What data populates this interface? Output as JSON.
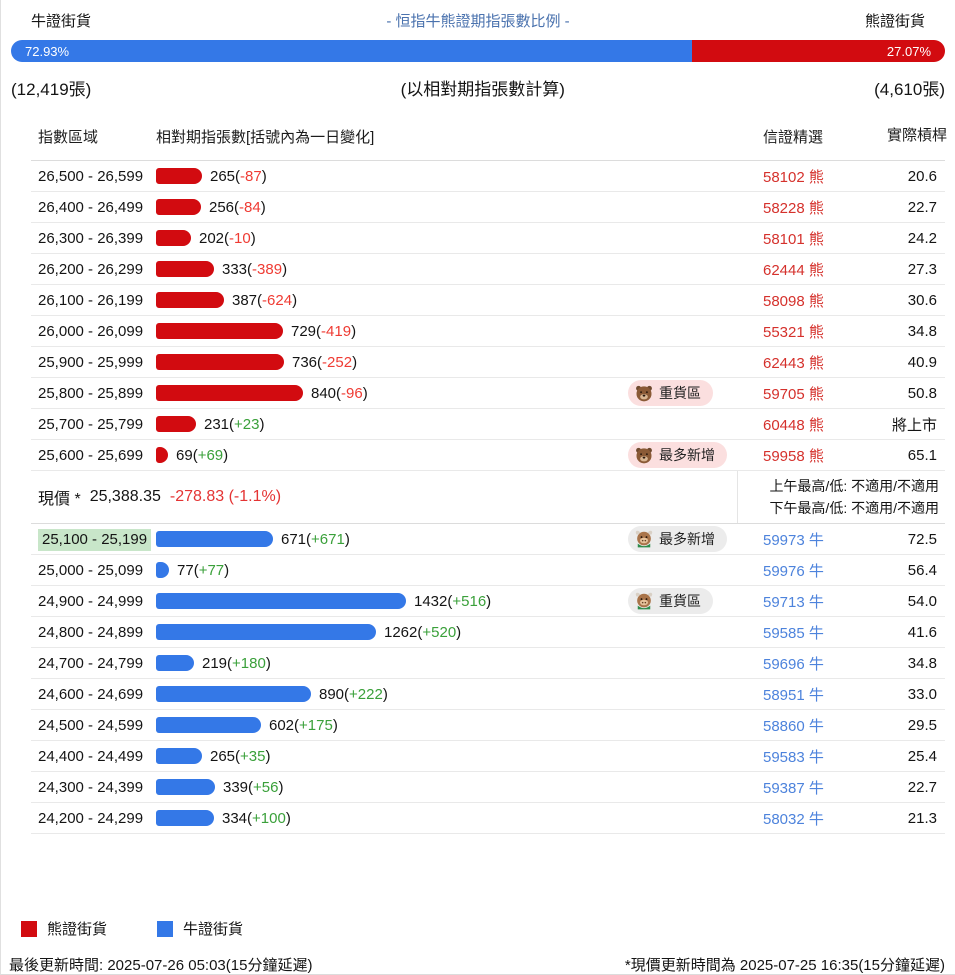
{
  "colors": {
    "bull": "#3478e7",
    "bear": "#d20b10",
    "pos_change": "#3aa03a",
    "neg_change": "#ef3b33",
    "bear_code": "#d5312c",
    "bull_code": "#4d83dc",
    "title": "#4a72ae",
    "highlight": "#c8e6c9",
    "badge_bear_bg": "#fbdfdf",
    "badge_bull_bg": "#ececec",
    "price_change": "#e43333"
  },
  "header": {
    "left_label": "牛證街貨",
    "title": "- 恒指牛熊證期指張數比例 -",
    "right_label": "熊證街貨",
    "bull_pct": "72.93%",
    "bear_pct": "27.07%",
    "bull_pct_value": 72.93,
    "bear_pct_value": 27.07,
    "bull_count": "(12,419張)",
    "basis_note": "(以相對期指張數計算)",
    "bear_count": "(4,610張)"
  },
  "table": {
    "headers": {
      "range": "指數區域",
      "contracts": "相對期指張數[括號內為一日變化]",
      "selection": "信證精選",
      "leverage": "實際槓桿"
    },
    "bear_rows": [
      {
        "range": "26,500 - 26,599",
        "value": 265,
        "change": "-87",
        "badge": null,
        "code": "58102",
        "code_suffix": "熊",
        "leverage": "20.6",
        "highlight": false
      },
      {
        "range": "26,400 - 26,499",
        "value": 256,
        "change": "-84",
        "badge": null,
        "code": "58228",
        "code_suffix": "熊",
        "leverage": "22.7",
        "highlight": false
      },
      {
        "range": "26,300 - 26,399",
        "value": 202,
        "change": "-10",
        "badge": null,
        "code": "58101",
        "code_suffix": "熊",
        "leverage": "24.2",
        "highlight": false
      },
      {
        "range": "26,200 - 26,299",
        "value": 333,
        "change": "-389",
        "badge": null,
        "code": "62444",
        "code_suffix": "熊",
        "leverage": "27.3",
        "highlight": false
      },
      {
        "range": "26,100 - 26,199",
        "value": 387,
        "change": "-624",
        "badge": null,
        "code": "58098",
        "code_suffix": "熊",
        "leverage": "30.6",
        "highlight": false
      },
      {
        "range": "26,000 - 26,099",
        "value": 729,
        "change": "-419",
        "badge": null,
        "code": "55321",
        "code_suffix": "熊",
        "leverage": "34.8",
        "highlight": false
      },
      {
        "range": "25,900 - 25,999",
        "value": 736,
        "change": "-252",
        "badge": null,
        "code": "62443",
        "code_suffix": "熊",
        "leverage": "40.9",
        "highlight": false
      },
      {
        "range": "25,800 - 25,899",
        "value": 840,
        "change": "-96",
        "badge": {
          "text": "重貨區",
          "animal": "bear"
        },
        "code": "59705",
        "code_suffix": "熊",
        "leverage": "50.8",
        "highlight": false
      },
      {
        "range": "25,700 - 25,799",
        "value": 231,
        "change": "+23",
        "badge": null,
        "code": "60448",
        "code_suffix": "熊",
        "leverage": "將上市",
        "highlight": false
      },
      {
        "range": "25,600 - 25,699",
        "value": 69,
        "change": "+69",
        "badge": {
          "text": "最多新增",
          "animal": "bear"
        },
        "code": "59958",
        "code_suffix": "熊",
        "leverage": "65.1",
        "highlight": false
      }
    ],
    "current_price": {
      "label": "現價 *",
      "price": "25,388.35",
      "change": "-278.83 (-1.1%)",
      "am_range": "上午最高/低: 不適用/不適用",
      "pm_range": "下午最高/低: 不適用/不適用"
    },
    "bull_rows": [
      {
        "range": "25,100 - 25,199",
        "value": 671,
        "change": "+671",
        "badge": {
          "text": "最多新增",
          "animal": "bull"
        },
        "code": "59973",
        "code_suffix": "牛",
        "leverage": "72.5",
        "highlight": true
      },
      {
        "range": "25,000 - 25,099",
        "value": 77,
        "change": "+77",
        "badge": null,
        "code": "59976",
        "code_suffix": "牛",
        "leverage": "56.4",
        "highlight": false
      },
      {
        "range": "24,900 - 24,999",
        "value": 1432,
        "change": "+516",
        "badge": {
          "text": "重貨區",
          "animal": "bull"
        },
        "code": "59713",
        "code_suffix": "牛",
        "leverage": "54.0",
        "highlight": false
      },
      {
        "range": "24,800 - 24,899",
        "value": 1262,
        "change": "+520",
        "badge": null,
        "code": "59585",
        "code_suffix": "牛",
        "leverage": "41.6",
        "highlight": false
      },
      {
        "range": "24,700 - 24,799",
        "value": 219,
        "change": "+180",
        "badge": null,
        "code": "59696",
        "code_suffix": "牛",
        "leverage": "34.8",
        "highlight": false
      },
      {
        "range": "24,600 - 24,699",
        "value": 890,
        "change": "+222",
        "badge": null,
        "code": "58951",
        "code_suffix": "牛",
        "leverage": "33.0",
        "highlight": false
      },
      {
        "range": "24,500 - 24,599",
        "value": 602,
        "change": "+175",
        "badge": null,
        "code": "58860",
        "code_suffix": "牛",
        "leverage": "29.5",
        "highlight": false
      },
      {
        "range": "24,400 - 24,499",
        "value": 265,
        "change": "+35",
        "badge": null,
        "code": "59583",
        "code_suffix": "牛",
        "leverage": "25.4",
        "highlight": false
      },
      {
        "range": "24,300 - 24,399",
        "value": 339,
        "change": "+56",
        "badge": null,
        "code": "59387",
        "code_suffix": "牛",
        "leverage": "22.7",
        "highlight": false
      },
      {
        "range": "24,200 - 24,299",
        "value": 334,
        "change": "+100",
        "badge": null,
        "code": "58032",
        "code_suffix": "牛",
        "leverage": "21.3",
        "highlight": false
      }
    ]
  },
  "legend": [
    {
      "label": "熊證街貨",
      "color": "#d20b10"
    },
    {
      "label": "牛證街貨",
      "color": "#3478e7"
    }
  ],
  "footer": {
    "left": "最後更新時間: 2025-07-26 05:03(15分鐘延遲)",
    "right": "*現價更新時間為 2025-07-25 16:35(15分鐘延遲)"
  },
  "chart_data": {
    "type": "bar",
    "orientation": "horizontal",
    "title": "- 恒指牛熊證期指張數比例 -",
    "subtitle": "(以相對期指張數計算)",
    "xlabel": "相對期指張數[括號內為一日變化]",
    "ylabel": "指數區域",
    "legend_position": "bottom",
    "bull_bear_ratio": {
      "bull_pct": 72.93,
      "bear_pct": 27.07,
      "bull_contracts": 12419,
      "bear_contracts": 4610
    },
    "current_price": {
      "value": 25388.35,
      "change": -278.83,
      "change_pct": -1.1
    },
    "series": [
      {
        "name": "熊證街貨",
        "color": "#d20b10",
        "categories": [
          "26,500 - 26,599",
          "26,400 - 26,499",
          "26,300 - 26,399",
          "26,200 - 26,299",
          "26,100 - 26,199",
          "26,000 - 26,099",
          "25,900 - 25,999",
          "25,800 - 25,899",
          "25,700 - 25,799",
          "25,600 - 25,699"
        ],
        "values": [
          265,
          256,
          202,
          333,
          387,
          729,
          736,
          840,
          231,
          69
        ],
        "day_change": [
          -87,
          -84,
          -10,
          -389,
          -624,
          -419,
          -252,
          -96,
          23,
          69
        ]
      },
      {
        "name": "牛證街貨",
        "color": "#3478e7",
        "categories": [
          "25,100 - 25,199",
          "25,000 - 25,099",
          "24,900 - 24,999",
          "24,800 - 24,899",
          "24,700 - 24,799",
          "24,600 - 24,699",
          "24,500 - 24,599",
          "24,400 - 24,499",
          "24,300 - 24,399",
          "24,200 - 24,299"
        ],
        "values": [
          671,
          77,
          1432,
          1262,
          219,
          890,
          602,
          265,
          339,
          334
        ],
        "day_change": [
          671,
          77,
          516,
          520,
          180,
          222,
          175,
          35,
          56,
          100
        ]
      }
    ]
  }
}
